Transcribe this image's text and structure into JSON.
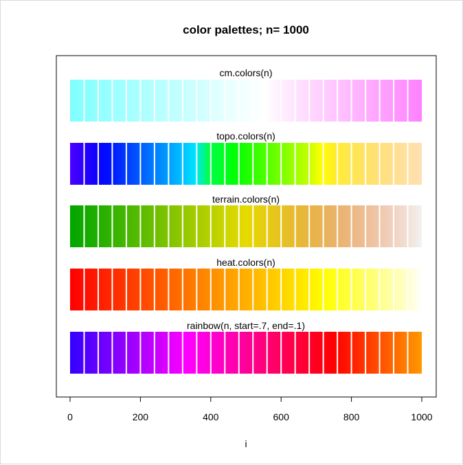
{
  "chart_data": {
    "type": "bar",
    "title": "color palettes;  n= 1000",
    "xlabel": "i",
    "ylabel": "",
    "xlim": [
      -40,
      1040
    ],
    "x_ticks": [
      0,
      200,
      400,
      600,
      800,
      1000
    ],
    "x_tick_labels": [
      "0",
      "200",
      "400",
      "600",
      "800",
      "1000"
    ],
    "n": 1000,
    "block_edges": [
      0,
      40,
      80,
      120,
      160,
      200,
      240,
      280,
      320,
      360,
      400,
      440,
      480,
      520,
      560,
      600,
      640,
      680,
      720,
      760,
      800,
      840,
      880,
      920,
      960,
      1000
    ],
    "grid": false,
    "series": [
      {
        "name": "cm.colors(n)",
        "colors": [
          "#80ffff",
          "#88ffff",
          "#90ffff",
          "#98ffff",
          "#a0ffff",
          "#a8ffff",
          "#b0ffff",
          "#b8ffff",
          "#c0ffff",
          "#c8ffff",
          "#d0ffff",
          "#dcffff",
          "#e8ffff",
          "#f0ffff",
          "#f8ffff",
          "#ffffff",
          "#fff0ff",
          "#ffe6ff",
          "#ffdcff",
          "#ffd2ff",
          "#ffc8ff",
          "#ffbeff",
          "#ffb4ff",
          "#ffaaff",
          "#ffa0ff",
          "#ff96ff",
          "#ff8cff",
          "#ff80ff"
        ]
      },
      {
        "name": "topo.colors(n)",
        "colors": [
          "#4c00ff",
          "#2e00ff",
          "#1000ff",
          "#000eff",
          "#002cff",
          "#004aff",
          "#0068ff",
          "#0086ff",
          "#00a4ff",
          "#00c2ff",
          "#00e5ff",
          "#00ff4d",
          "#00ff2a",
          "#00ff08",
          "#1aff00",
          "#3cff00",
          "#5eff00",
          "#80ff00",
          "#a2ff00",
          "#c4ff00",
          "#ffff00",
          "#ffee28",
          "#ffe84a",
          "#ffe45c",
          "#ffe26e",
          "#ffe080",
          "#ffe092",
          "#ffe0a4",
          "#ffe0b3"
        ]
      },
      {
        "name": "terrain.colors(n)",
        "colors": [
          "#00a600",
          "#10aa00",
          "#20ae00",
          "#32b200",
          "#44b600",
          "#56ba00",
          "#68be00",
          "#7ac200",
          "#8cc600",
          "#9ecb00",
          "#b0cf00",
          "#c2d300",
          "#d4d700",
          "#e6db00",
          "#e6d00d",
          "#e6c71a",
          "#e6be28",
          "#e6b836",
          "#e7b44a",
          "#e8b35e",
          "#eab472",
          "#ecb886",
          "#eebf9a",
          "#f0c8ae",
          "#f1d3c2",
          "#f2e0d6",
          "#f2f2f2"
        ]
      },
      {
        "name": "heat.colors(n)",
        "colors": [
          "#ff0000",
          "#ff0d00",
          "#ff1a00",
          "#ff2700",
          "#ff3400",
          "#ff4100",
          "#ff4e00",
          "#ff5b00",
          "#ff6800",
          "#ff7500",
          "#ff8200",
          "#ff8f00",
          "#ff9c00",
          "#ffa900",
          "#ffb600",
          "#ffc300",
          "#ffd000",
          "#ffdd00",
          "#ffea00",
          "#fff700",
          "#ffff10",
          "#ffff30",
          "#ffff50",
          "#ffff70",
          "#ffff90",
          "#ffffb0",
          "#ffffd0",
          "#ffffff"
        ]
      },
      {
        "name": "rainbow(n, start=.7, end=.1)",
        "colors": [
          "#3300ff",
          "#4400ff",
          "#5500ff",
          "#6600ff",
          "#7700ff",
          "#8800ff",
          "#9900ff",
          "#aa00ff",
          "#bb00ff",
          "#cc00ff",
          "#dd00ff",
          "#ee00ff",
          "#ff00ff",
          "#ff00ee",
          "#ff00dd",
          "#ff00cc",
          "#ff00bb",
          "#ff00aa",
          "#ff0099",
          "#ff0088",
          "#ff0077",
          "#ff0066",
          "#ff0055",
          "#ff0044",
          "#ff0033",
          "#ff0022",
          "#ff0011",
          "#ff0000",
          "#ff1100",
          "#ff2200",
          "#ff3300",
          "#ff4400",
          "#ff5500",
          "#ff6600",
          "#ff7700",
          "#ff8800",
          "#ff9900"
        ]
      }
    ]
  }
}
